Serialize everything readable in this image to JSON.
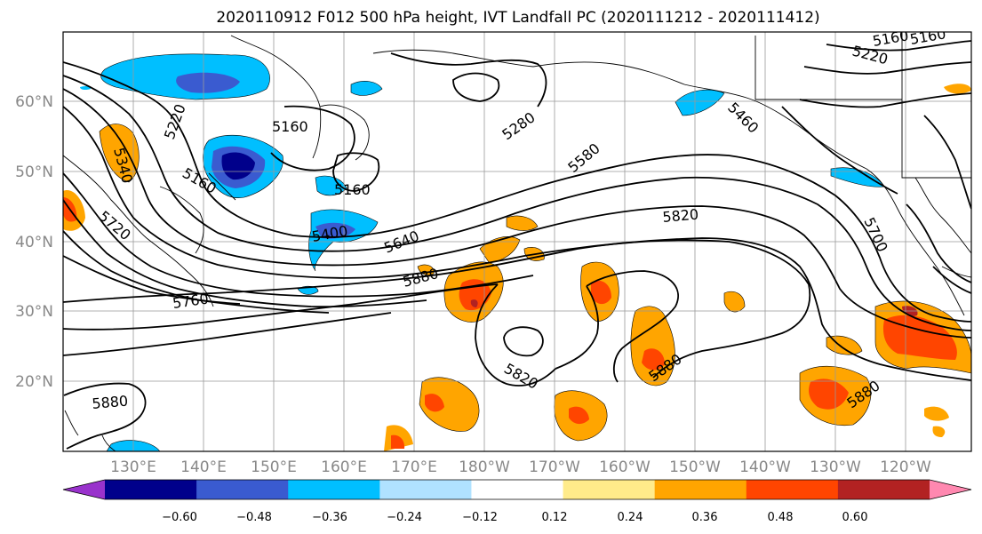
{
  "title": "2020110912 F012 500 hPa height, IVT Landfall PC (2020111212 - 2020111412)",
  "lat_labels": [
    "60°N",
    "50°N",
    "40°N",
    "30°N",
    "20°N"
  ],
  "lon_labels": [
    "130°E",
    "140°E",
    "150°E",
    "160°E",
    "170°E",
    "180°W",
    "170°W",
    "160°W",
    "150°W",
    "140°W",
    "130°W",
    "120°W"
  ],
  "colorbar": {
    "ticks": [
      "−0.60",
      "−0.48",
      "−0.36",
      "−0.24",
      "−0.12",
      "0.12",
      "0.24",
      "0.36",
      "0.48",
      "0.60"
    ],
    "colors": [
      "#9932cc",
      "#00008b",
      "#3a5bd0",
      "#00bfff",
      "#b0e2ff",
      "#ffffff",
      "#ffeb8a",
      "#ffa500",
      "#ff4500",
      "#b22222",
      "#ff88b0"
    ]
  },
  "contour_labels": [
    "5160",
    "5160",
    "5160",
    "5160",
    "5160",
    "5220",
    "5220",
    "5280",
    "5340",
    "5400",
    "5460",
    "5580",
    "5640",
    "5700",
    "5720",
    "5760",
    "5820",
    "5820",
    "5880",
    "5880",
    "5880",
    "5880"
  ]
}
